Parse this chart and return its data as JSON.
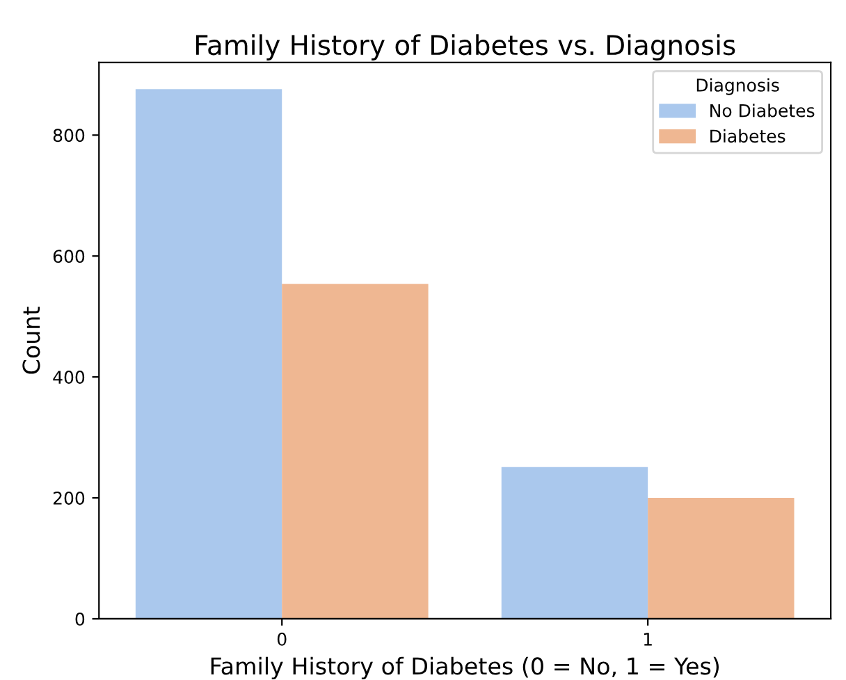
{
  "chart_data": {
    "type": "bar",
    "title": "Family History of Diabetes vs. Diagnosis",
    "xlabel": "Family History of Diabetes (0 = No, 1 = Yes)",
    "ylabel": "Count",
    "legend_title": "Diagnosis",
    "categories": [
      "0",
      "1"
    ],
    "series": [
      {
        "name": "No Diabetes",
        "color": "#aac8ed",
        "values": [
          876,
          251
        ]
      },
      {
        "name": "Diabetes",
        "color": "#efb792",
        "values": [
          554,
          200
        ]
      }
    ],
    "ylim": [
      0,
      920
    ],
    "yticks": [
      0,
      200,
      400,
      600,
      800
    ],
    "legend": "top right",
    "grid": false
  }
}
